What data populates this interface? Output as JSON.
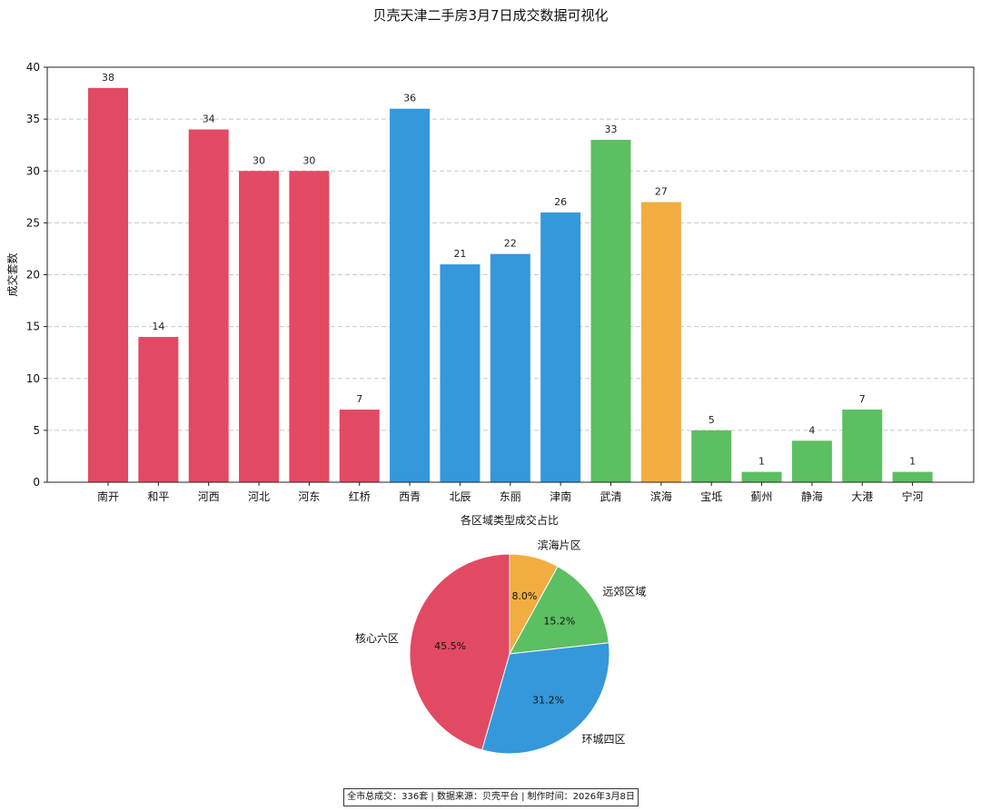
{
  "chart_data": [
    {
      "type": "bar",
      "title": "贝壳天津二手房3月7日成交数据可视化",
      "xlabel": "",
      "ylabel": "成交套数",
      "ylim": [
        0,
        40
      ],
      "yticks": [
        0,
        5,
        10,
        15,
        20,
        25,
        30,
        35,
        40
      ],
      "grid": "horizontal dashed",
      "categories": [
        "南开",
        "和平",
        "河西",
        "河北",
        "河东",
        "红桥",
        "西青",
        "北辰",
        "东丽",
        "津南",
        "武清",
        "滨海",
        "宝坻",
        "蓟州",
        "静海",
        "大港",
        "宁河"
      ],
      "values": [
        38,
        14,
        34,
        30,
        30,
        7,
        36,
        21,
        22,
        26,
        33,
        27,
        5,
        1,
        4,
        7,
        1
      ],
      "bar_colors": [
        "#e24a63",
        "#e24a63",
        "#e24a63",
        "#e24a63",
        "#e24a63",
        "#e24a63",
        "#3498db",
        "#3498db",
        "#3498db",
        "#3498db",
        "#5cbf61",
        "#f2ad41",
        "#5cbf61",
        "#5cbf61",
        "#5cbf61",
        "#5cbf61",
        "#5cbf61"
      ]
    },
    {
      "type": "pie",
      "title": "各区域类型成交占比",
      "slices": [
        {
          "label": "滨海片区",
          "value": 8.0,
          "pct_label": "8.0%",
          "color": "#f2ad41"
        },
        {
          "label": "远郊区域",
          "value": 15.2,
          "pct_label": "15.2%",
          "color": "#5cbf61"
        },
        {
          "label": "环城四区",
          "value": 31.2,
          "pct_label": "31.2%",
          "color": "#3498db"
        },
        {
          "label": "核心六区",
          "value": 45.5,
          "pct_label": "45.5%",
          "color": "#e24a63"
        }
      ],
      "start_angle_deg": 90,
      "direction": "clockwise"
    }
  ],
  "footer": {
    "text": "全市总成交：336套 | 数据来源：贝壳平台 | 制作时间：2026年3月8日"
  }
}
